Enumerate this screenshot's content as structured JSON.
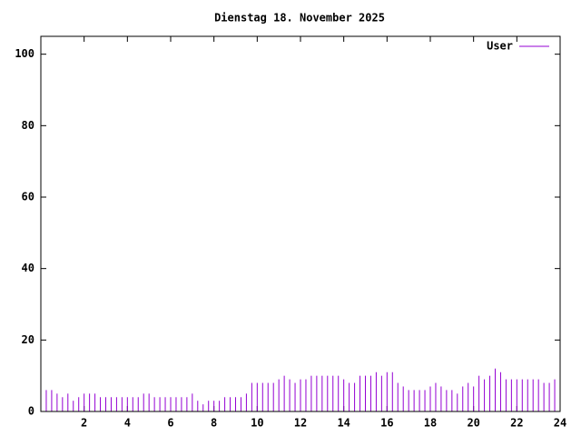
{
  "chart_data": {
    "type": "impulses",
    "title": "Dienstag 18. November 2025",
    "x": [
      0,
      0.25,
      0.5,
      0.75,
      1,
      1.25,
      1.5,
      1.75,
      2,
      2.25,
      2.5,
      2.75,
      3,
      3.25,
      3.5,
      3.75,
      4,
      4.25,
      4.5,
      4.75,
      5,
      5.25,
      5.5,
      5.75,
      6,
      6.25,
      6.5,
      6.75,
      7,
      7.25,
      7.5,
      7.75,
      8,
      8.25,
      8.5,
      8.75,
      9,
      9.25,
      9.5,
      9.75,
      10,
      10.25,
      10.5,
      10.75,
      11,
      11.25,
      11.5,
      11.75,
      12,
      12.25,
      12.5,
      12.75,
      13,
      13.25,
      13.5,
      13.75,
      14,
      14.25,
      14.5,
      14.75,
      15,
      15.25,
      15.5,
      15.75,
      16,
      16.25,
      16.5,
      16.75,
      17,
      17.25,
      17.5,
      17.75,
      18,
      18.25,
      18.5,
      18.75,
      19,
      19.25,
      19.5,
      19.75,
      20,
      20.25,
      20.5,
      20.75,
      21,
      21.25,
      21.5,
      21.75,
      22,
      22.25,
      22.5,
      22.75,
      23,
      23.25,
      23.5,
      23.75
    ],
    "series": [
      {
        "name": "User",
        "color": "#9400d3",
        "values": [
          6,
          6,
          6,
          5,
          4,
          5,
          3,
          4,
          5,
          5,
          5,
          4,
          4,
          4,
          4,
          4,
          4,
          4,
          4,
          5,
          5,
          4,
          4,
          4,
          4,
          4,
          4,
          4,
          5,
          3,
          2,
          3,
          3,
          3,
          4,
          4,
          4,
          4,
          5,
          8,
          8,
          8,
          8,
          8,
          9,
          10,
          9,
          8,
          9,
          9,
          10,
          10,
          10,
          10,
          10,
          10,
          9,
          8,
          8,
          10,
          10,
          10,
          11,
          10,
          11,
          11,
          8,
          7,
          6,
          6,
          6,
          6,
          7,
          8,
          7,
          6,
          6,
          5,
          7,
          8,
          7,
          10,
          9,
          10,
          12,
          11,
          9,
          9,
          9,
          9,
          9,
          9,
          9,
          8,
          8,
          9
        ]
      }
    ],
    "xlim": [
      0,
      24
    ],
    "xticks": [
      2,
      4,
      6,
      8,
      10,
      12,
      14,
      16,
      18,
      20,
      22,
      24
    ],
    "ylim": [
      0,
      105
    ],
    "yticks": [
      0,
      20,
      40,
      60,
      80,
      100
    ],
    "legend": "top-right"
  }
}
